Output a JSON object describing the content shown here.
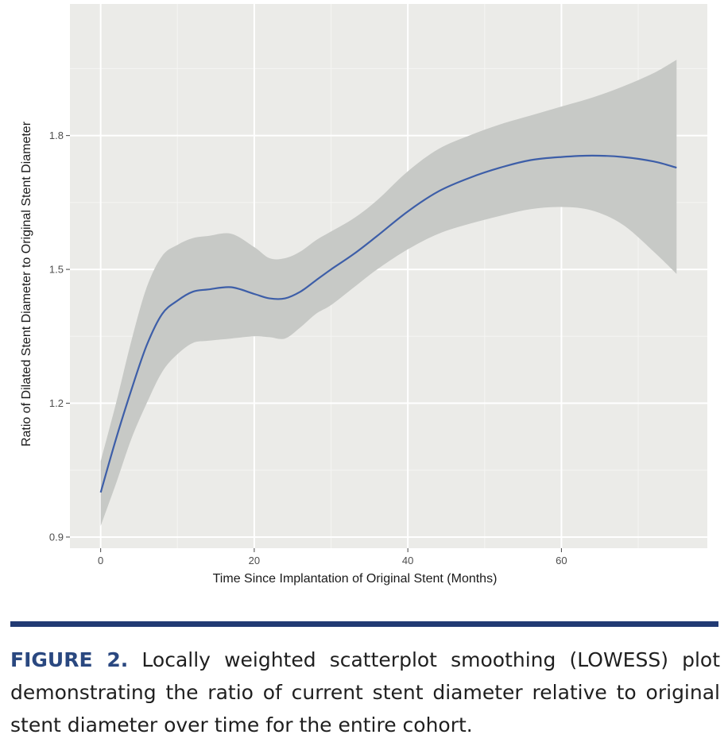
{
  "colors": {
    "panel_bg": "#ebebe8",
    "grid_major": "#ffffff",
    "grid_minor": "#f5f5f3",
    "ribbon": "#c7c9c6",
    "line": "#3d5ea8",
    "rule": "#213a73",
    "caption_lead": "#2a4880"
  },
  "chart_data": {
    "type": "line",
    "title": "",
    "xlabel": "Time Since Implantation of Original Stent (Months)",
    "ylabel": "Ratio of Dilated Stent Diameter to Original Stent Diameter",
    "xlim": [
      -4,
      79
    ],
    "ylim": [
      0.875,
      2.095
    ],
    "x_ticks": [
      0,
      20,
      40,
      60
    ],
    "x_tick_labels": [
      "0",
      "20",
      "40",
      "60"
    ],
    "y_ticks": [
      0.9,
      1.2,
      1.5,
      1.8
    ],
    "y_tick_labels": [
      "0.9",
      "1.2",
      "1.5",
      "1.8"
    ],
    "grid": true,
    "legend": "none",
    "series": [
      {
        "name": "LOWESS fit",
        "x": [
          0,
          2,
          4,
          6,
          8,
          10,
          12,
          14,
          17,
          20,
          22,
          24,
          26,
          28,
          30,
          33,
          36,
          40,
          44,
          48,
          52,
          56,
          60,
          64,
          68,
          72,
          75
        ],
        "values": [
          1.0,
          1.12,
          1.23,
          1.33,
          1.4,
          1.43,
          1.45,
          1.455,
          1.46,
          1.445,
          1.435,
          1.435,
          1.45,
          1.475,
          1.5,
          1.535,
          1.575,
          1.63,
          1.675,
          1.705,
          1.728,
          1.745,
          1.752,
          1.755,
          1.752,
          1.742,
          1.728
        ],
        "lower": [
          0.925,
          1.02,
          1.12,
          1.2,
          1.27,
          1.31,
          1.335,
          1.34,
          1.345,
          1.35,
          1.348,
          1.345,
          1.37,
          1.4,
          1.42,
          1.46,
          1.5,
          1.545,
          1.58,
          1.602,
          1.62,
          1.635,
          1.64,
          1.632,
          1.6,
          1.54,
          1.49
        ],
        "upper": [
          1.07,
          1.2,
          1.34,
          1.46,
          1.53,
          1.555,
          1.57,
          1.575,
          1.58,
          1.55,
          1.525,
          1.525,
          1.54,
          1.565,
          1.585,
          1.615,
          1.655,
          1.72,
          1.77,
          1.8,
          1.825,
          1.845,
          1.865,
          1.885,
          1.91,
          1.94,
          1.97
        ]
      }
    ]
  },
  "caption": {
    "lead": "FIGURE 2.",
    "text": " Locally weighted scatterplot smoothing (LOWESS) plot demonstrating the ratio of current stent diameter relative to original stent diameter over time for the entire cohort."
  }
}
